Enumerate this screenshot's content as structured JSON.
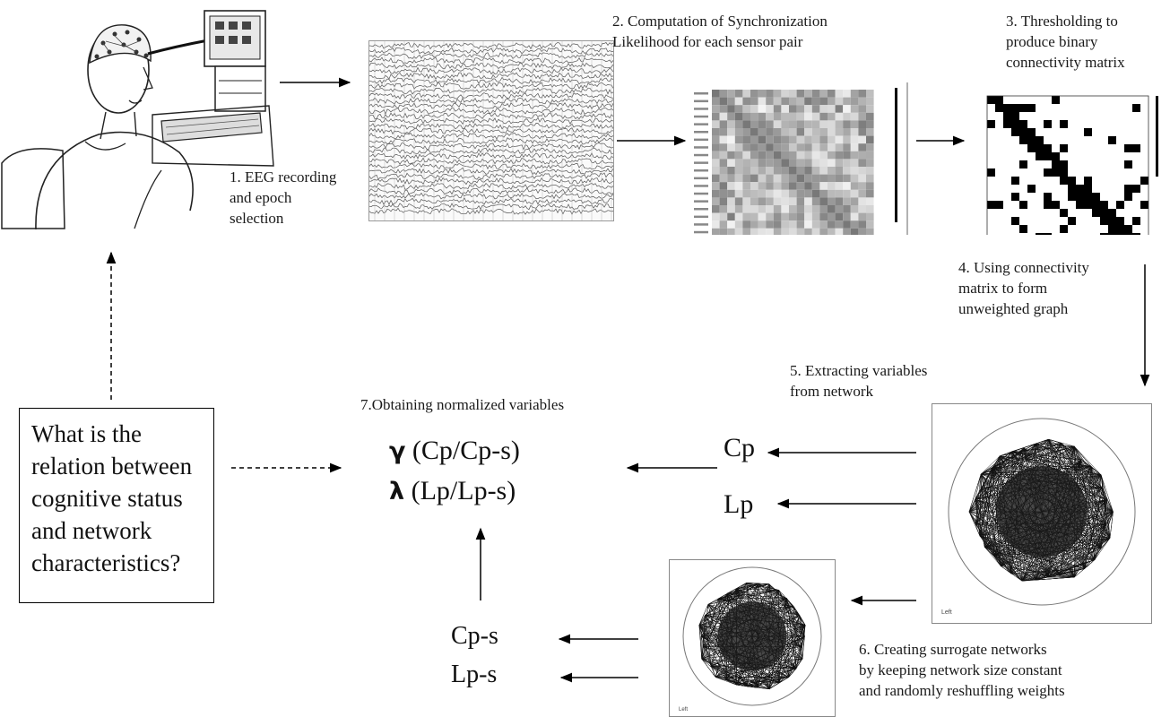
{
  "steps": {
    "s1": [
      "1. EEG recording",
      "and epoch",
      "selection"
    ],
    "s2": [
      "2. Computation of Synchronization",
      "Likelihood for each sensor pair"
    ],
    "s3": [
      "3. Thresholding to",
      "produce binary",
      "connectivity matrix"
    ],
    "s4": [
      "4. Using connectivity",
      "matrix to form",
      "unweighted graph"
    ],
    "s5": [
      "5. Extracting variables",
      "from network"
    ],
    "s6": [
      "6. Creating surrogate networks",
      "by keeping network size constant",
      "and randomly reshuffling weights"
    ],
    "s7": "7.Obtaining normalized variables"
  },
  "question": [
    "What is the",
    "relation between",
    "cognitive status",
    "and network",
    "characteristics?"
  ],
  "formulas": {
    "gamma_symbol": "γ",
    "gamma_expr": "(Cp/Cp-s)",
    "lambda_symbol": "λ",
    "lambda_expr": "(Lp/Lp-s)"
  },
  "variables": {
    "cp": "Cp",
    "lp": "Lp",
    "cps": "Cp-s",
    "lps": "Lp-s"
  },
  "graph_caption": "Left"
}
